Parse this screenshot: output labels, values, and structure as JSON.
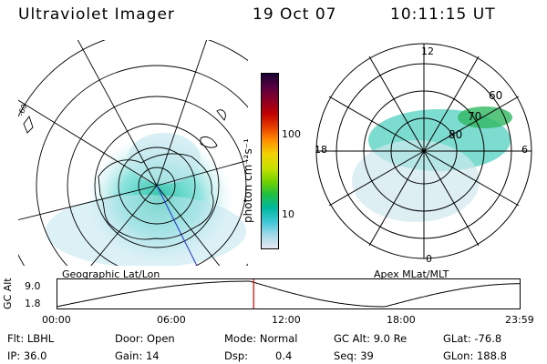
{
  "header": {
    "instrument": "Ultraviolet Imager",
    "date": "19 Oct 07",
    "time": "10:11:15 UT"
  },
  "colorbar": {
    "unit_label": "photon cm⁻²s⁻¹",
    "ticks": [
      "100",
      "10"
    ],
    "colors": [
      "#1a0033",
      "#5a0040",
      "#8a0028",
      "#c00000",
      "#e84000",
      "#ff8c00",
      "#f2d200",
      "#c8e000",
      "#70d000",
      "#20c040",
      "#00b8a0",
      "#40c8d8",
      "#a0d8e8",
      "#e8e8f0"
    ]
  },
  "geographic_map": {
    "caption": "Geographic Lat/Lon",
    "edge_labels": [
      "-60"
    ]
  },
  "apex_map": {
    "caption": "Apex MLat/MLT",
    "mlt_labels": {
      "top": "12",
      "left": "18",
      "right": "6",
      "bottom": "0"
    },
    "lat_labels": [
      "60",
      "70",
      "80"
    ]
  },
  "altitude_plot": {
    "axis_label": "GC Alt",
    "y_ticks": [
      "9.0",
      "1.8"
    ],
    "x_ticks": [
      "00:00",
      "06:00",
      "12:00",
      "18:00",
      "23:59"
    ],
    "current_marker_hour": 10.19
  },
  "info": {
    "row1": {
      "flt": "Flt: LBHL",
      "door": "Door: Open",
      "mode": "Mode: Normal",
      "gc_alt": "GC Alt: 9.0 Re",
      "glat": "GLat: -76.8"
    },
    "row2": {
      "ip": "IP: 36.0",
      "gain": "Gain: 14",
      "dsp_label": "Dsp:",
      "dsp_value": "0.4",
      "seq": "Seq: 39",
      "glon": "GLon: 188.8"
    }
  }
}
